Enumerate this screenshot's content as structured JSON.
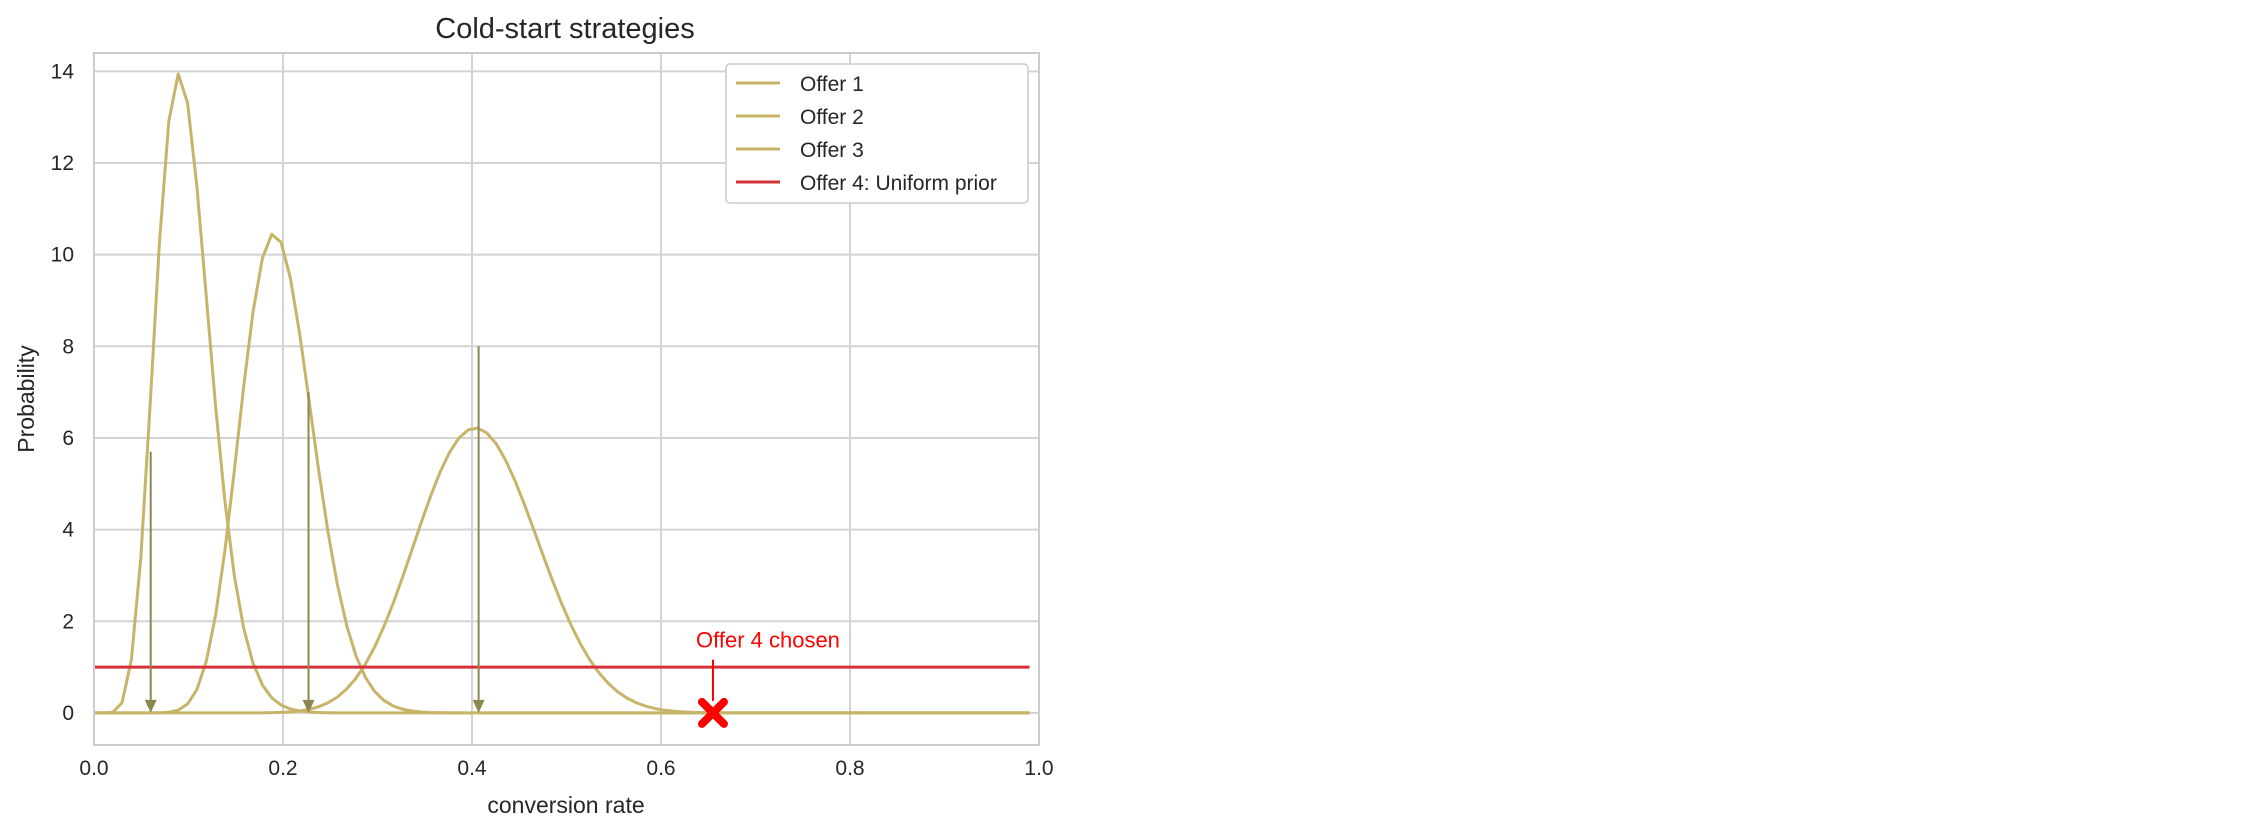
{
  "chart_data": {
    "type": "line",
    "title": "Cold-start strategies",
    "xlabel": "conversion rate",
    "ylabel": "Probability",
    "xlim": [
      0.0,
      1.0
    ],
    "ylim": [
      -0.7,
      14.4
    ],
    "xticks": [
      "0.0",
      "0.2",
      "0.4",
      "0.6",
      "0.8",
      "1.0"
    ],
    "yticks": [
      "0",
      "2",
      "4",
      "6",
      "8",
      "10",
      "12",
      "14"
    ],
    "grid": true,
    "legend_position": "top-right",
    "series": [
      {
        "name": "Offer 1",
        "color": "#c8b469",
        "distribution": "beta",
        "alpha": 10,
        "beta": 92
      },
      {
        "name": "Offer 2",
        "color": "#c8b469",
        "distribution": "beta",
        "alpha": 21,
        "beta": 86
      },
      {
        "name": "Offer 3",
        "color": "#c8b469",
        "distribution": "beta",
        "alpha": 24,
        "beta": 35
      },
      {
        "name": "Offer 4: Uniform prior",
        "color": "#d5313a",
        "distribution": "uniform",
        "value": 1
      }
    ],
    "sample_arrows": [
      {
        "x": 0.06,
        "y_start": 5.7,
        "y_end": 0
      },
      {
        "x": 0.227,
        "y_start": 7.0,
        "y_end": 0
      },
      {
        "x": 0.407,
        "y_start": 8.0,
        "y_end": 0
      }
    ],
    "arrow_color": "#8c8750",
    "chosen_marker": {
      "x": 0.655,
      "y": 0,
      "color": "#ff0000"
    },
    "annotation": {
      "text": "Offer 4 chosen",
      "x": 0.655,
      "y": 1.25,
      "color": "#ff0000"
    }
  }
}
